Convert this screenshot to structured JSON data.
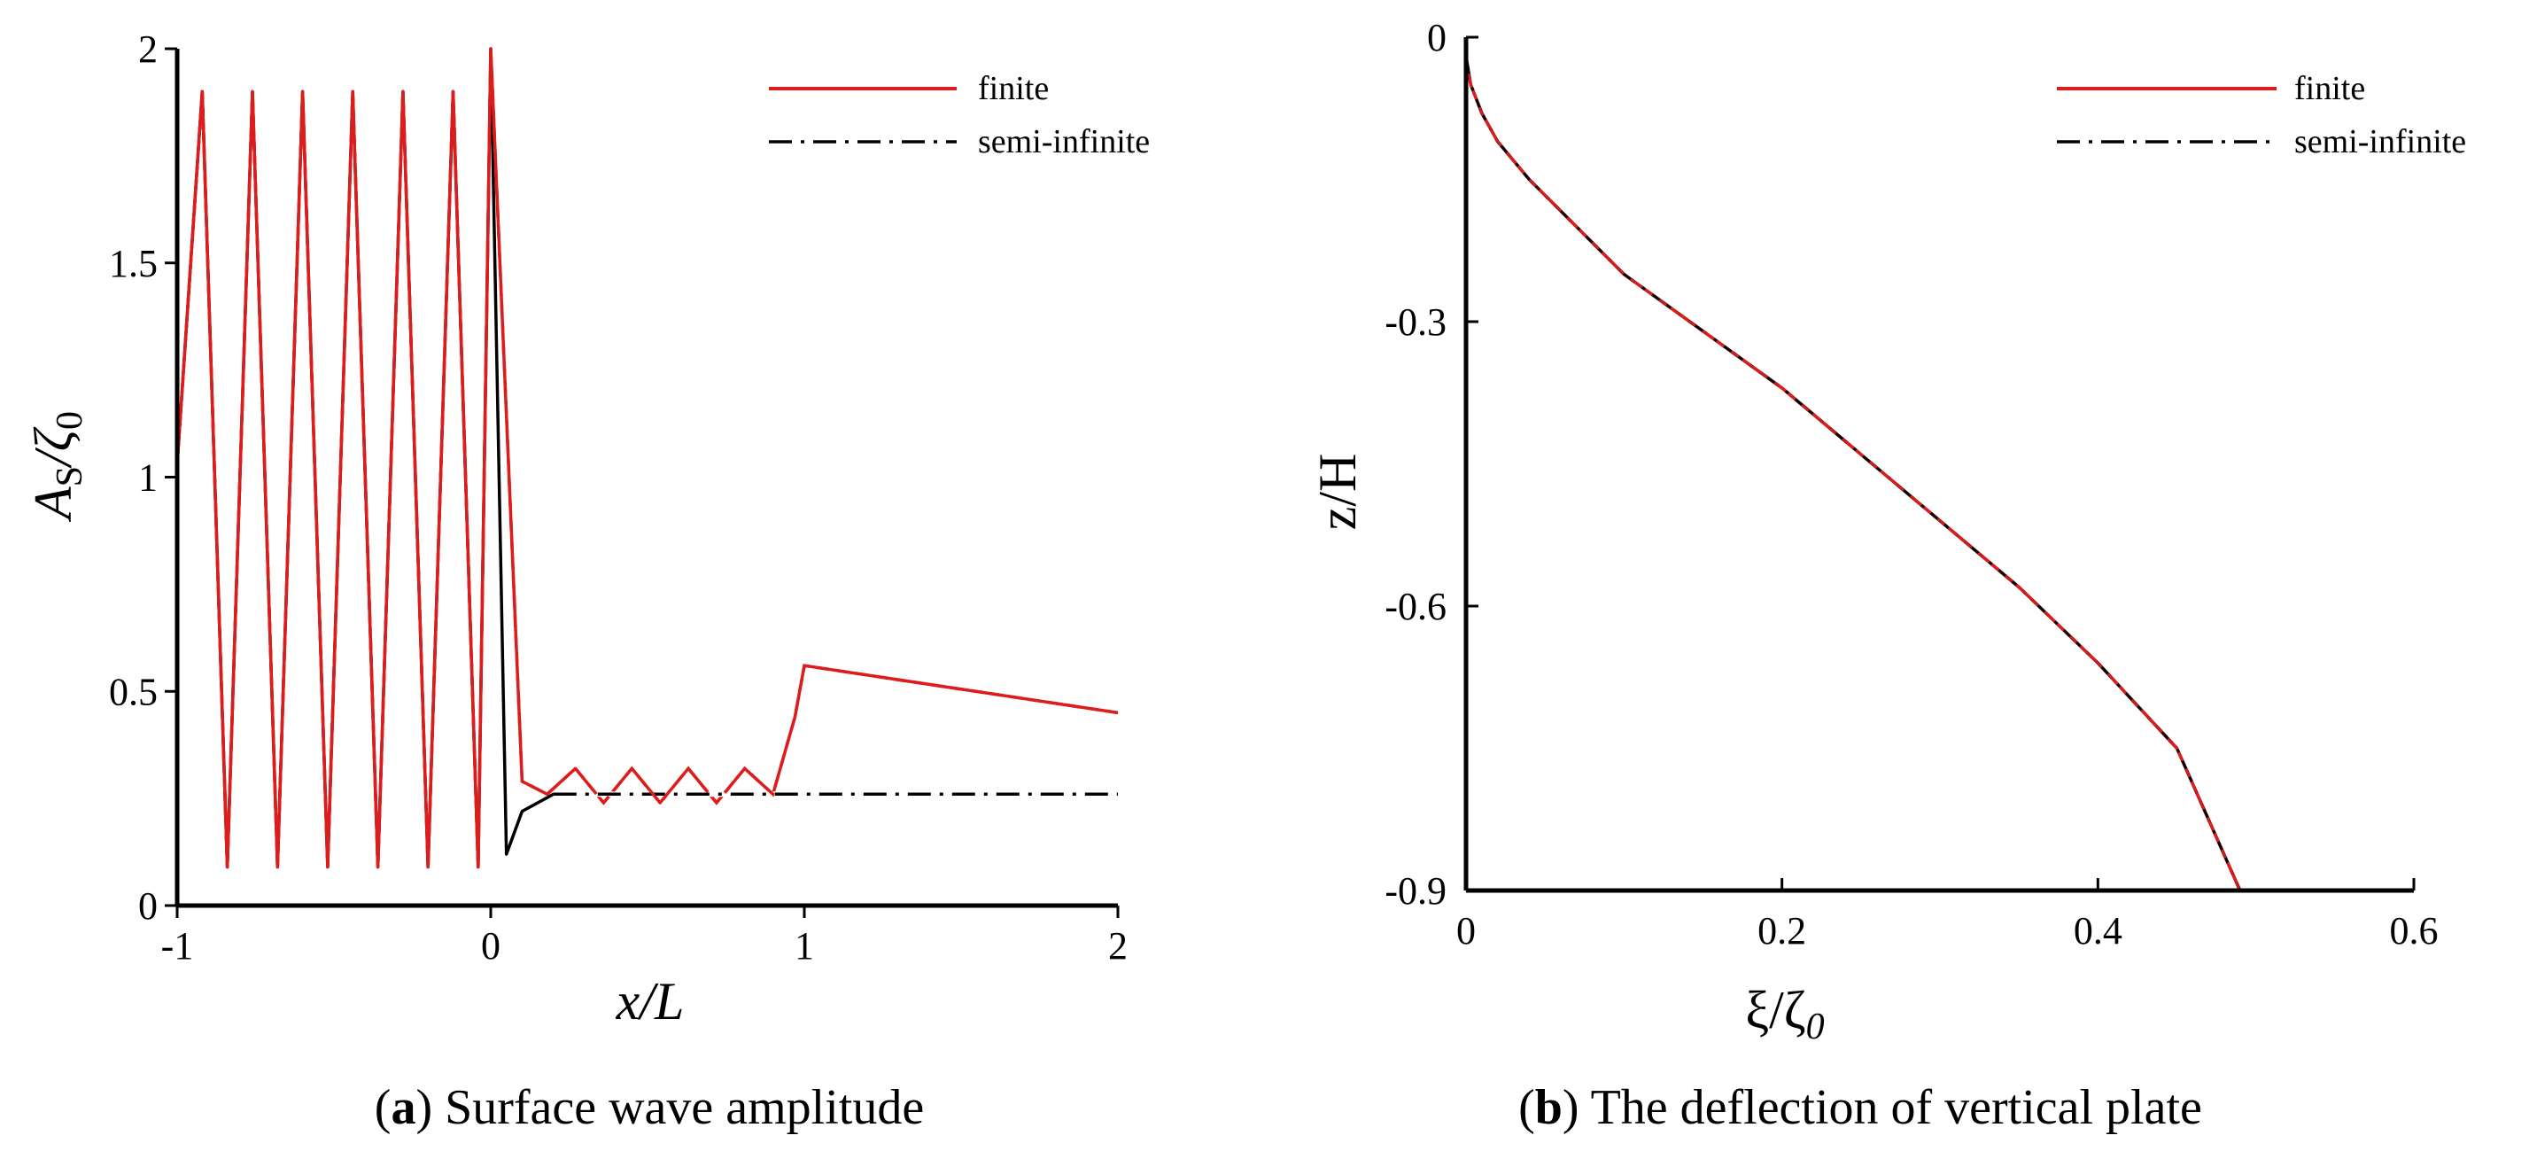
{
  "colors": {
    "finite": "#dd1c1c",
    "semi_infinite": "#000000",
    "axes": "#000000"
  },
  "panels": [
    {
      "caption_tag": "a",
      "caption_text": "Surface wave amplitude",
      "xlabel": {
        "main": "x/L"
      },
      "ylabel": {
        "main": "A",
        "sub1": "S",
        "sep": "/ζ",
        "sub2": "0"
      },
      "legend": {
        "finite": "finite",
        "semi_infinite": "semi-infinite"
      }
    },
    {
      "caption_tag": "b",
      "caption_text": "The deflection of vertical plate",
      "xlabel": {
        "main": "ξ/ζ",
        "sub": "0"
      },
      "ylabel": {
        "main": "z/H"
      },
      "legend": {
        "finite": "finite",
        "semi_infinite": "semi-infinite"
      }
    }
  ],
  "chart_data": [
    {
      "type": "line",
      "title": "",
      "xlabel": "x/L",
      "ylabel": "A_S/ζ_0",
      "xlim": [
        -1,
        2
      ],
      "ylim": [
        0,
        2
      ],
      "xticks": [
        -1,
        0,
        1,
        2
      ],
      "yticks": [
        0,
        0.5,
        1,
        1.5,
        2
      ],
      "legend_position": "top-right",
      "grid": false,
      "series": [
        {
          "name": "finite",
          "style": "solid",
          "x": [
            -1.0,
            -0.92,
            -0.84,
            -0.76,
            -0.68,
            -0.6,
            -0.52,
            -0.44,
            -0.36,
            -0.28,
            -0.2,
            -0.12,
            -0.04,
            0.0,
            0.1,
            0.18,
            0.27,
            0.36,
            0.45,
            0.54,
            0.63,
            0.72,
            0.81,
            0.9,
            0.97,
            1.0,
            2.0
          ],
          "y": [
            1.03,
            1.9,
            0.09,
            1.9,
            0.09,
            1.9,
            0.09,
            1.9,
            0.09,
            1.9,
            0.09,
            1.9,
            0.09,
            2.0,
            0.29,
            0.26,
            0.32,
            0.24,
            0.32,
            0.24,
            0.32,
            0.24,
            0.32,
            0.26,
            0.44,
            0.56,
            0.45
          ]
        },
        {
          "name": "semi-infinite",
          "style": "dash-dot",
          "x": [
            -1.0,
            -0.92,
            -0.84,
            -0.76,
            -0.68,
            -0.6,
            -0.52,
            -0.44,
            -0.36,
            -0.28,
            -0.2,
            -0.12,
            -0.04,
            0.0,
            0.05,
            0.1,
            0.2,
            0.5,
            1.0,
            2.0
          ],
          "y": [
            1.03,
            1.9,
            0.09,
            1.9,
            0.09,
            1.9,
            0.09,
            1.9,
            0.09,
            1.9,
            0.09,
            1.9,
            0.09,
            2.0,
            0.12,
            0.22,
            0.26,
            0.26,
            0.26,
            0.26
          ]
        }
      ]
    },
    {
      "type": "line",
      "title": "",
      "xlabel": "ξ/ζ_0",
      "ylabel": "z/H",
      "xlim": [
        0,
        0.6
      ],
      "ylim": [
        -0.9,
        0
      ],
      "xticks": [
        0,
        0.2,
        0.4,
        0.6
      ],
      "yticks": [
        0,
        -0.3,
        -0.6,
        -0.9
      ],
      "legend_position": "top-right",
      "grid": false,
      "series": [
        {
          "name": "finite",
          "style": "solid",
          "x": [
            0.0,
            0.003,
            0.01,
            0.02,
            0.04,
            0.07,
            0.1,
            0.15,
            0.2,
            0.25,
            0.3,
            0.35,
            0.4,
            0.45,
            0.49
          ],
          "y": [
            -0.02,
            -0.05,
            -0.08,
            -0.11,
            -0.15,
            -0.2,
            -0.25,
            -0.31,
            -0.37,
            -0.44,
            -0.51,
            -0.58,
            -0.66,
            -0.75,
            -0.9
          ]
        },
        {
          "name": "semi-infinite",
          "style": "dash-dot",
          "x": [
            0.0,
            0.003,
            0.01,
            0.02,
            0.04,
            0.07,
            0.1,
            0.15,
            0.2,
            0.25,
            0.3,
            0.35,
            0.4,
            0.45,
            0.49
          ],
          "y": [
            -0.02,
            -0.05,
            -0.08,
            -0.11,
            -0.15,
            -0.2,
            -0.25,
            -0.31,
            -0.37,
            -0.44,
            -0.51,
            -0.58,
            -0.66,
            -0.75,
            -0.9
          ]
        }
      ]
    }
  ]
}
